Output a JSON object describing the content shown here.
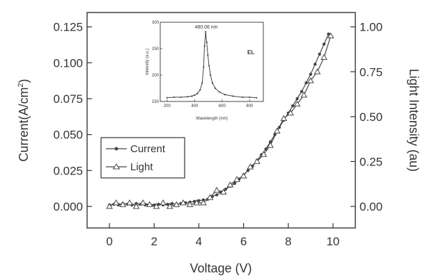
{
  "chart_data": {
    "type": "scatter",
    "xlabel": "Voltage (V)",
    "ylabel_left": "Current(A/cm",
    "ylabel_left_sup": "2",
    "ylabel_left_close": ")",
    "ylabel_right": "Light Intensity (au)",
    "xlim": [
      -1,
      11
    ],
    "ylim_left": [
      -0.015,
      0.135
    ],
    "ylim_right": [
      -0.12,
      1.08
    ],
    "x_ticks": [
      "0",
      "2",
      "4",
      "6",
      "8",
      "10"
    ],
    "y_left_ticks": [
      "0.000",
      "0.025",
      "0.050",
      "0.075",
      "0.100",
      "0.125"
    ],
    "y_right_ticks": [
      "0.00",
      "0.25",
      "0.50",
      "0.75",
      "1.00"
    ],
    "legend_position": "center-left",
    "series": [
      {
        "name": "Current",
        "axis": "left",
        "marker": "dot",
        "x": [
          0,
          0.2,
          0.4,
          0.6,
          0.8,
          1.0,
          1.2,
          1.4,
          1.6,
          1.8,
          2.0,
          2.2,
          2.4,
          2.6,
          2.8,
          3.0,
          3.2,
          3.4,
          3.6,
          3.8,
          4.0,
          4.2,
          4.4,
          4.6,
          4.8,
          5.0,
          5.2,
          5.4,
          5.6,
          5.8,
          6.0,
          6.2,
          6.4,
          6.6,
          6.8,
          7.0,
          7.2,
          7.4,
          7.6,
          7.8,
          8.0,
          8.2,
          8.4,
          8.6,
          8.8,
          9.0,
          9.2,
          9.4,
          9.6,
          9.8
        ],
        "y": [
          0.001,
          0.0015,
          0.001,
          0.002,
          0.0015,
          0.001,
          0.002,
          0.0015,
          0.001,
          0.0015,
          0.001,
          0.0015,
          0.001,
          0.0015,
          0.002,
          0.0015,
          0.002,
          0.0025,
          0.003,
          0.0035,
          0.004,
          0.0045,
          0.005,
          0.007,
          0.008,
          0.01,
          0.012,
          0.014,
          0.016,
          0.019,
          0.022,
          0.025,
          0.028,
          0.032,
          0.036,
          0.04,
          0.045,
          0.05,
          0.055,
          0.06,
          0.065,
          0.07,
          0.075,
          0.08,
          0.086,
          0.092,
          0.099,
          0.106,
          0.113,
          0.12
        ]
      },
      {
        "name": "Light",
        "axis": "right",
        "marker": "triangle",
        "x": [
          0,
          0.3,
          0.6,
          0.9,
          1.2,
          1.5,
          1.8,
          2.1,
          2.4,
          2.7,
          3.0,
          3.3,
          3.6,
          3.9,
          4.2,
          4.5,
          4.8,
          5.1,
          5.4,
          5.7,
          6.0,
          6.3,
          6.6,
          6.9,
          7.2,
          7.5,
          7.8,
          8.1,
          8.4,
          8.7,
          9.0,
          9.3,
          9.6,
          9.9
        ],
        "y": [
          0.0,
          0.02,
          0.01,
          0.02,
          0.0,
          0.02,
          0.01,
          0.0,
          0.02,
          0.0,
          0.01,
          0.02,
          0.01,
          0.02,
          0.02,
          0.05,
          0.09,
          0.08,
          0.12,
          0.15,
          0.17,
          0.22,
          0.25,
          0.29,
          0.34,
          0.42,
          0.49,
          0.52,
          0.57,
          0.62,
          0.7,
          0.75,
          0.83,
          0.95
        ]
      }
    ],
    "inset": {
      "label": "EL",
      "annotation": "480.06 nm",
      "xlabel": "Wavelength (nm)",
      "ylabel": "Intensity (a.u.)",
      "xlim": [
        150,
        900
      ],
      "ylim": [
        150,
        300
      ],
      "x_ticks": [
        "200",
        "400",
        "600",
        "800"
      ],
      "y_ticks": [
        "150",
        "200",
        "250",
        "300"
      ],
      "x": [
        200,
        250,
        300,
        350,
        380,
        400,
        420,
        440,
        455,
        465,
        472,
        480,
        488,
        496,
        505,
        515,
        530,
        550,
        580,
        620,
        680,
        750,
        800,
        850
      ],
      "y": [
        157,
        158,
        158,
        159,
        160,
        162,
        165,
        172,
        185,
        215,
        255,
        282,
        262,
        238,
        218,
        200,
        185,
        175,
        168,
        163,
        160,
        158,
        158,
        157
      ]
    }
  }
}
